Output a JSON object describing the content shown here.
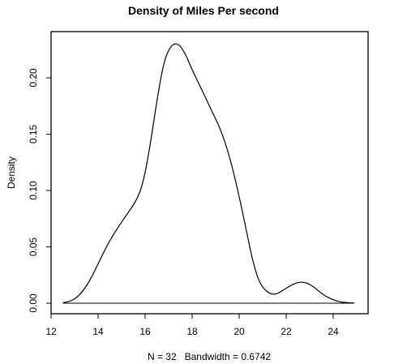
{
  "chart_data": {
    "type": "line",
    "title": "Density of Miles Per second",
    "xlabel": "N = 32   Bandwidth = 0.6742",
    "ylabel": "Density",
    "xlim": [
      12,
      25
    ],
    "ylim": [
      0,
      0.24
    ],
    "grid": false,
    "x_ticks": [
      12,
      14,
      16,
      18,
      20,
      22,
      24
    ],
    "x_tick_labels": [
      "12",
      "14",
      "16",
      "18",
      "20",
      "22",
      "24"
    ],
    "y_ticks": [
      0.0,
      0.05,
      0.1,
      0.15,
      0.2
    ],
    "y_tick_labels": [
      "0.00",
      "0.05",
      "0.10",
      "0.15",
      "0.20"
    ],
    "series": [
      {
        "x": [
          12.5,
          12.8,
          13.1,
          13.4,
          13.7,
          14.0,
          14.4,
          14.8,
          15.2,
          15.6,
          15.9,
          16.2,
          16.5,
          16.8,
          17.1,
          17.4,
          17.7,
          18.0,
          18.4,
          18.8,
          19.2,
          19.6,
          20.0,
          20.3,
          20.6,
          20.9,
          21.3,
          21.6,
          21.9,
          22.3,
          22.6,
          22.9,
          23.2,
          23.6,
          24.0,
          24.3,
          24.6,
          24.9
        ],
        "y": [
          0.0004,
          0.0015,
          0.005,
          0.012,
          0.022,
          0.035,
          0.052,
          0.066,
          0.078,
          0.09,
          0.105,
          0.138,
          0.18,
          0.215,
          0.229,
          0.231,
          0.222,
          0.207,
          0.19,
          0.172,
          0.155,
          0.13,
          0.095,
          0.065,
          0.035,
          0.016,
          0.008,
          0.008,
          0.012,
          0.017,
          0.019,
          0.018,
          0.014,
          0.007,
          0.003,
          0.001,
          0.0004,
          0.0001
        ]
      }
    ]
  }
}
